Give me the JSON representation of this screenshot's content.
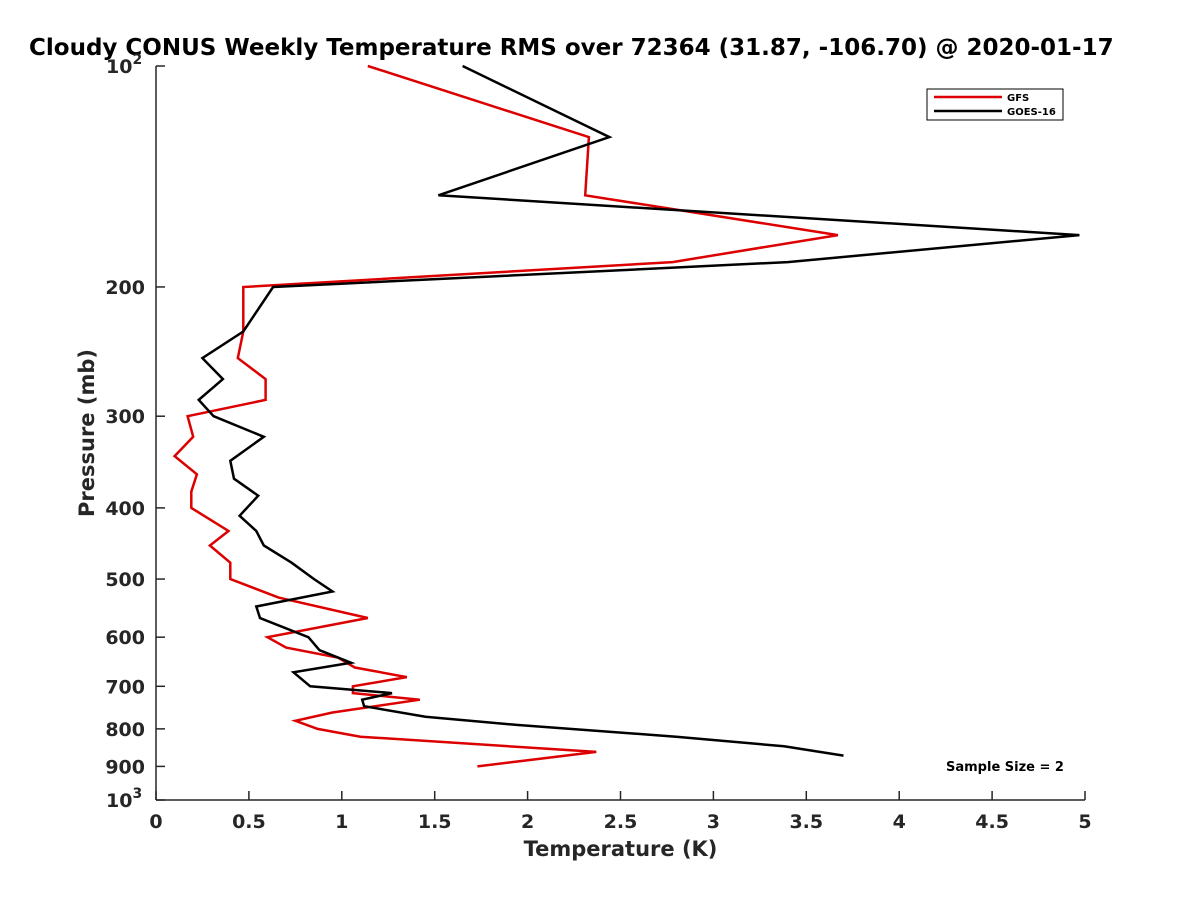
{
  "chart_data": {
    "type": "line",
    "title": "Cloudy CONUS Weekly Temperature RMS over 72364 (31.87, -106.70) @ 2020-01-17",
    "xlabel": "Temperature (K)",
    "ylabel": "Pressure (mb)",
    "xlim": [
      0,
      5
    ],
    "ylim": [
      100,
      1000
    ],
    "y_scale": "log",
    "y_reversed": true,
    "grid": false,
    "legend_position": "top-right",
    "x_ticks": [
      {
        "value": 0,
        "label": "0"
      },
      {
        "value": 0.5,
        "label": "0.5"
      },
      {
        "value": 1,
        "label": "1"
      },
      {
        "value": 1.5,
        "label": "1.5"
      },
      {
        "value": 2,
        "label": "2"
      },
      {
        "value": 2.5,
        "label": "2.5"
      },
      {
        "value": 3,
        "label": "3"
      },
      {
        "value": 3.5,
        "label": "3.5"
      },
      {
        "value": 4,
        "label": "4"
      },
      {
        "value": 4.5,
        "label": "4.5"
      },
      {
        "value": 5,
        "label": "5"
      }
    ],
    "y_ticks": [
      {
        "value": 100,
        "label": "10",
        "exponent": "2"
      },
      {
        "value": 200,
        "label": "200"
      },
      {
        "value": 300,
        "label": "300"
      },
      {
        "value": 400,
        "label": "400"
      },
      {
        "value": 500,
        "label": "500"
      },
      {
        "value": 600,
        "label": "600"
      },
      {
        "value": 700,
        "label": "700"
      },
      {
        "value": 800,
        "label": "800"
      },
      {
        "value": 900,
        "label": "900"
      },
      {
        "value": 1000,
        "label": "10",
        "exponent": "3"
      }
    ],
    "annotation": "Sample Size = 2",
    "series": [
      {
        "name": "GFS",
        "color": "#dd0000",
        "points": [
          [
            1.14,
            100
          ],
          [
            2.33,
            125
          ],
          [
            2.31,
            150
          ],
          [
            3.67,
            170
          ],
          [
            2.78,
            185
          ],
          [
            0.47,
            200
          ],
          [
            0.47,
            230
          ],
          [
            0.44,
            250
          ],
          [
            0.59,
            267
          ],
          [
            0.59,
            285
          ],
          [
            0.17,
            300
          ],
          [
            0.2,
            320
          ],
          [
            0.1,
            340
          ],
          [
            0.22,
            360
          ],
          [
            0.19,
            380
          ],
          [
            0.19,
            400
          ],
          [
            0.39,
            430
          ],
          [
            0.29,
            450
          ],
          [
            0.4,
            475
          ],
          [
            0.4,
            500
          ],
          [
            0.66,
            530
          ],
          [
            1.14,
            565
          ],
          [
            0.6,
            600
          ],
          [
            0.7,
            620
          ],
          [
            0.98,
            640
          ],
          [
            1.07,
            660
          ],
          [
            1.35,
            680
          ],
          [
            1.06,
            700
          ],
          [
            1.06,
            715
          ],
          [
            1.42,
            730
          ],
          [
            0.95,
            760
          ],
          [
            0.75,
            780
          ],
          [
            0.87,
            800
          ],
          [
            1.1,
            820
          ],
          [
            2.37,
            860
          ],
          [
            1.73,
            900
          ]
        ]
      },
      {
        "name": "GOES-16",
        "color": "#000000",
        "points": [
          [
            1.65,
            100
          ],
          [
            2.44,
            125
          ],
          [
            1.52,
            150
          ],
          [
            4.97,
            170
          ],
          [
            3.4,
            185
          ],
          [
            0.63,
            200
          ],
          [
            0.47,
            230
          ],
          [
            0.25,
            250
          ],
          [
            0.36,
            267
          ],
          [
            0.23,
            285
          ],
          [
            0.31,
            300
          ],
          [
            0.58,
            320
          ],
          [
            0.4,
            345
          ],
          [
            0.42,
            365
          ],
          [
            0.55,
            385
          ],
          [
            0.45,
            410
          ],
          [
            0.54,
            430
          ],
          [
            0.58,
            450
          ],
          [
            0.73,
            475
          ],
          [
            0.85,
            500
          ],
          [
            0.95,
            520
          ],
          [
            0.54,
            545
          ],
          [
            0.56,
            565
          ],
          [
            0.82,
            600
          ],
          [
            0.88,
            625
          ],
          [
            1.05,
            650
          ],
          [
            0.74,
            670
          ],
          [
            0.83,
            700
          ],
          [
            1.27,
            715
          ],
          [
            1.11,
            730
          ],
          [
            1.12,
            745
          ],
          [
            1.45,
            770
          ],
          [
            1.94,
            790
          ],
          [
            2.8,
            820
          ],
          [
            3.38,
            845
          ],
          [
            3.7,
            870
          ]
        ]
      }
    ]
  }
}
